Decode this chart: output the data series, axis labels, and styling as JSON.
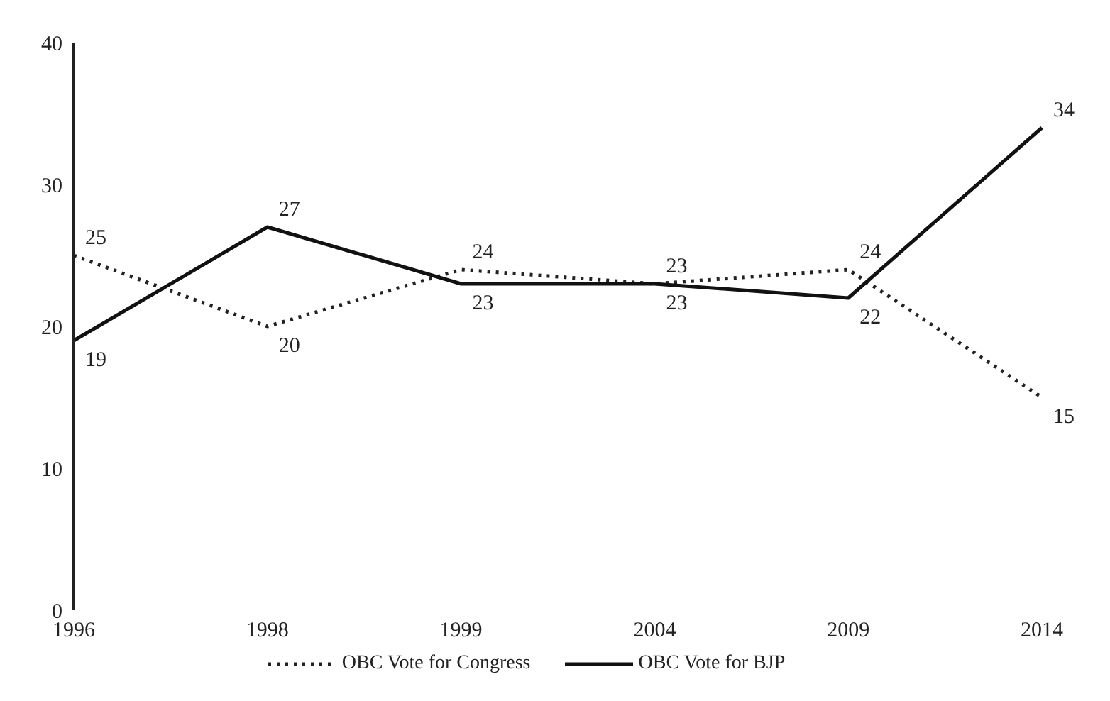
{
  "chart_data": {
    "type": "line",
    "categories": [
      "1996",
      "1998",
      "1999",
      "2004",
      "2009",
      "2014"
    ],
    "series": [
      {
        "name": "OBC Vote for Congress",
        "color": "#222222",
        "line_style": "dotted",
        "values": [
          25,
          20,
          24,
          23,
          24,
          15
        ]
      },
      {
        "name": "OBC Vote for BJP",
        "color": "#111111",
        "line_style": "solid",
        "values": [
          19,
          27,
          23,
          23,
          22,
          34
        ]
      }
    ],
    "ylim": [
      0,
      40
    ],
    "yticks": [
      0,
      10,
      20,
      30,
      40
    ],
    "grid": false,
    "legend": "bottom",
    "marker": "none",
    "data_labels": true
  }
}
